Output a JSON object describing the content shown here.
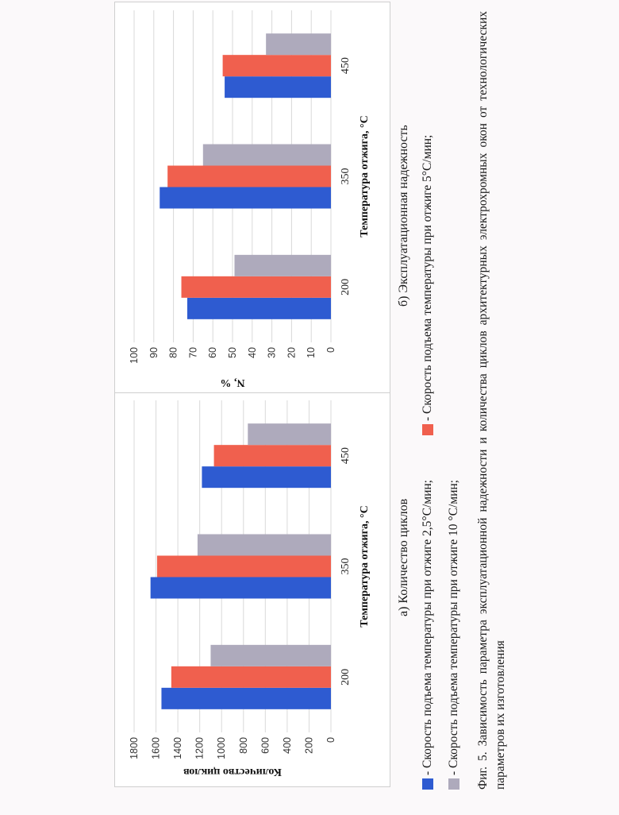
{
  "chart_data": [
    {
      "type": "bar",
      "categories": [
        "200",
        "350",
        "450"
      ],
      "series": [
        {
          "values": [
            1550,
            1650,
            1180
          ],
          "color": "#2e5bd1"
        },
        {
          "values": [
            1460,
            1590,
            1070
          ],
          "color": "#f0604e"
        },
        {
          "values": [
            1100,
            1220,
            760
          ],
          "color": "#aeaabc"
        }
      ],
      "yticks": [
        0,
        200,
        400,
        600,
        800,
        1000,
        1200,
        1400,
        1600,
        1800
      ],
      "ylim": [
        0,
        1800
      ],
      "xlabel": "Температура отжига, °С",
      "ylabel": "Количество циклов",
      "grid": true,
      "caption": "а) Количество циклов"
    },
    {
      "type": "bar",
      "categories": [
        "200",
        "350",
        "450"
      ],
      "series": [
        {
          "values": [
            73,
            87,
            54
          ],
          "color": "#2e5bd1"
        },
        {
          "values": [
            76,
            83,
            55
          ],
          "color": "#f0604e"
        },
        {
          "values": [
            49,
            65,
            33
          ],
          "color": "#aeaabc"
        }
      ],
      "yticks": [
        0,
        10,
        20,
        30,
        40,
        50,
        60,
        70,
        80,
        90,
        100
      ],
      "ylim": [
        0,
        100
      ],
      "xlabel": "Температура отжига, °С",
      "ylabel": "N, %",
      "grid": true,
      "caption": "б) Эксплуатационная надежность"
    }
  ],
  "legend": [
    {
      "label": "- Скорость подъема температуры при отжиге 2,5°С/мин;",
      "color": "#2e5bd1"
    },
    {
      "label": "- Скорость подъема температуры при отжиге 5°С/мин;",
      "color": "#f0604e"
    },
    {
      "label": "- Скорость подъема температуры при отжиге 10 °С/мин;",
      "color": "#aeaabc"
    }
  ],
  "figure_caption": "Фиг. 5. Зависимость параметра эксплуатационной надежности и количества циклов архитектурных электрохромных окон от технологических параметров их изготовления",
  "orientation": "page rotated 90° counter-clockwise"
}
